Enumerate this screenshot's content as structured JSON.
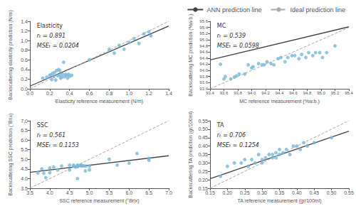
{
  "chart_data": [
    {
      "type": "scatter",
      "xlabel": "Elasticity reference measurement (N/m)",
      "ylabel": "Backscattering elasticity prediction (N/m)",
      "annotations": [
        "Elasticity",
        "rₜ = 0.891",
        "MSEₜ = 0.0204"
      ],
      "xlim": [
        0.0,
        1.4
      ],
      "ylim": [
        0.0,
        1.4
      ],
      "xticks": [
        {
          "value": 0.0,
          "label": "0.0"
        },
        0.2,
        0.4,
        0.6,
        0.8,
        {
          "value": 1.0,
          "label": "1.0"
        },
        1.2,
        1.4
      ],
      "yticks": [
        {
          "value": 0.0,
          "label": "0.0"
        },
        0.2,
        0.4,
        0.6,
        0.8,
        {
          "value": 1.0,
          "label": "1.0"
        },
        1.2,
        1.4
      ],
      "grid": false,
      "legend": "top right",
      "series": [
        {
          "type": "scatter",
          "color": "#7ab8d9",
          "marker": "circle",
          "x": [
            0.13,
            0.17,
            0.2,
            0.21,
            0.22,
            0.23,
            0.24,
            0.25,
            0.26,
            0.27,
            0.28,
            0.29,
            0.3,
            0.3,
            0.31,
            0.32,
            0.33,
            0.34,
            0.35,
            0.36,
            0.37,
            0.38,
            0.39,
            0.4,
            0.42,
            0.6,
            0.8,
            0.85,
            0.9,
            0.95,
            1.0,
            1.05,
            1.1,
            1.15,
            1.2,
            1.22
          ],
          "values": [
            0.22,
            0.24,
            0.28,
            0.29,
            0.19,
            0.32,
            0.26,
            0.34,
            0.18,
            0.38,
            0.27,
            0.4,
            0.28,
            0.38,
            0.22,
            0.24,
            0.3,
            0.55,
            0.25,
            0.3,
            0.28,
            0.22,
            0.3,
            0.26,
            0.28,
            0.6,
            0.82,
            0.74,
            0.9,
            0.82,
            0.96,
            1.04,
            0.94,
            1.14,
            1.18,
            1.1
          ]
        },
        {
          "name": "ANN prediction line",
          "type": "line",
          "color": "#444444",
          "line_style": "solid",
          "x": [
            0.0,
            1.4
          ],
          "values": [
            0.055,
            1.3024
          ]
        },
        {
          "name": "Ideal prediction line",
          "type": "line",
          "color": "#aaaaaa",
          "line_style": "dashed",
          "x": [
            0.0,
            1.4
          ],
          "values": [
            0.0,
            1.4
          ]
        }
      ]
    },
    {
      "type": "scatter",
      "xlabel": "MC reference measurement (%w.b.)",
      "ylabel": "Backscattering MC prediction (%w.b.)",
      "annotations": [
        "MC",
        "rₜ = 0.539",
        "MSEₜ = 0.0598"
      ],
      "xlim": [
        93.4,
        95.4
      ],
      "ylim": [
        93.4,
        95.6
      ],
      "xticks": [
        93.4,
        93.6,
        93.8,
        {
          "value": 94.0,
          "label": "94.0"
        },
        94.2,
        94.4,
        94.6,
        94.8,
        {
          "value": 95.0,
          "label": "95.0"
        },
        95.2,
        95.4
      ],
      "yticks": [
        93.4,
        93.6,
        93.8,
        {
          "value": 94.0,
          "label": "94.0"
        },
        94.2,
        94.4,
        94.6,
        94.8,
        {
          "value": 95.0,
          "label": "95.0"
        },
        95.2,
        95.4,
        95.6
      ],
      "grid": false,
      "legend": "top right",
      "series": [
        {
          "type": "scatter",
          "color": "#7ab8d9",
          "marker": "circle",
          "x": [
            93.55,
            93.6,
            93.62,
            93.7,
            93.75,
            93.78,
            93.82,
            93.9,
            93.95,
            94.0,
            94.02,
            94.1,
            94.15,
            94.18,
            94.22,
            94.28,
            94.32,
            94.38,
            94.42,
            94.48,
            94.52,
            94.58,
            94.62,
            94.68,
            94.72,
            94.78,
            94.82,
            94.88,
            94.92,
            94.98,
            95.02,
            95.08,
            95.2
          ],
          "values": [
            94.2,
            93.72,
            93.8,
            93.72,
            93.78,
            93.82,
            93.88,
            93.88,
            94.18,
            94.08,
            94.12,
            94.22,
            94.18,
            94.18,
            94.28,
            94.22,
            94.18,
            94.38,
            94.42,
            94.28,
            94.42,
            94.48,
            94.48,
            94.38,
            94.52,
            94.42,
            94.58,
            94.48,
            94.58,
            94.58,
            94.42,
            94.58,
            94.8
          ]
        },
        {
          "name": "ANN prediction line",
          "type": "line",
          "color": "#444444",
          "line_style": "solid",
          "x": [
            93.4,
            95.4
          ],
          "values": [
            94.3426,
            95.4206
          ]
        },
        {
          "name": "Ideal prediction line",
          "type": "line",
          "color": "#aaaaaa",
          "line_style": "dashed",
          "x": [
            93.4,
            95.4
          ],
          "values": [
            93.4,
            95.4
          ]
        }
      ]
    },
    {
      "type": "scatter",
      "xlabel": "SSC reference measurement (°Brix)",
      "ylabel": "Backscattering SSC prediction (°Brix)",
      "annotations": [
        "SSC",
        "rₜ = 0.561",
        "MSEₜ = 0.1153"
      ],
      "xlim": [
        3.5,
        7.0
      ],
      "ylim": [
        3.5,
        7.0
      ],
      "xticks": [
        3.5,
        {
          "value": 4.0,
          "label": "4.0"
        },
        4.5,
        {
          "value": 5.0,
          "label": "5.0"
        },
        5.5,
        {
          "value": 6.0,
          "label": "6.0"
        },
        6.5,
        {
          "value": 7.0,
          "label": "7.0"
        }
      ],
      "yticks": [
        3.5,
        {
          "value": 4.0,
          "label": "4.0"
        },
        4.5,
        {
          "value": 5.0,
          "label": "5.0"
        },
        5.5,
        {
          "value": 6.0,
          "label": "6.0"
        },
        6.5,
        {
          "value": 7.0,
          "label": "7.0"
        }
      ],
      "grid": false,
      "legend": "top right",
      "series": [
        {
          "type": "scatter",
          "color": "#7ab8d9",
          "marker": "circle",
          "x": [
            3.7,
            3.8,
            3.85,
            3.9,
            4.0,
            4.0,
            4.1,
            4.2,
            4.3,
            4.5,
            4.5,
            4.6,
            4.6,
            4.65,
            4.7,
            4.7,
            4.7,
            4.7,
            4.75,
            4.8,
            4.8,
            4.85,
            4.9,
            4.9,
            5.0,
            5.0,
            5.5,
            5.7,
            6.0,
            6.2,
            6.5,
            6.5
          ],
          "values": [
            4.3,
            4.5,
            4.28,
            4.05,
            4.55,
            4.3,
            4.6,
            4.45,
            4.65,
            4.7,
            4.45,
            4.65,
            4.7,
            4.6,
            4.65,
            4.7,
            4.62,
            4.0,
            4.68,
            4.65,
            4.7,
            4.66,
            4.65,
            4.4,
            4.65,
            4.45,
            5.0,
            4.7,
            4.8,
            5.3,
            5.05,
            4.95
          ]
        },
        {
          "name": "ANN prediction line",
          "type": "line",
          "color": "#444444",
          "line_style": "solid",
          "x": [
            3.5,
            7.0
          ],
          "values": [
            4.3275,
            5.185
          ]
        },
        {
          "name": "Ideal prediction line",
          "type": "line",
          "color": "#aaaaaa",
          "line_style": "dashed",
          "x": [
            3.5,
            7.0
          ],
          "values": [
            3.5,
            7.0
          ]
        }
      ]
    },
    {
      "type": "scatter",
      "xlabel": "TA reference measurement (gr/100ml)",
      "ylabel": "Backscattering TA prediction (gr/100ml)",
      "annotations": [
        "TA",
        "rₜ = 0.706",
        "MSEₜ = 0.1254"
      ],
      "xlim": [
        0.15,
        0.55
      ],
      "ylim": [
        0.15,
        0.55
      ],
      "xticks": [
        0.15,
        {
          "value": 0.2,
          "label": "0.20"
        },
        0.25,
        {
          "value": 0.3,
          "label": "0.30"
        },
        0.35,
        {
          "value": 0.4,
          "label": "0.40"
        },
        0.45,
        {
          "value": 0.5,
          "label": "0.50"
        },
        0.55
      ],
      "yticks": [
        0.15,
        {
          "value": 0.2,
          "label": "0.20"
        },
        0.25,
        {
          "value": 0.3,
          "label": "0.30"
        },
        0.35,
        {
          "value": 0.4,
          "label": "0.40"
        },
        0.45,
        {
          "value": 0.5,
          "label": "0.50"
        },
        0.55
      ],
      "grid": false,
      "legend": "top right",
      "series": [
        {
          "type": "scatter",
          "color": "#7ab8d9",
          "marker": "circle",
          "x": [
            0.18,
            0.2,
            0.22,
            0.24,
            0.25,
            0.26,
            0.27,
            0.28,
            0.29,
            0.3,
            0.3,
            0.31,
            0.32,
            0.33,
            0.33,
            0.34,
            0.34,
            0.35,
            0.35,
            0.36,
            0.37,
            0.38,
            0.39,
            0.4,
            0.41,
            0.42,
            0.43,
            0.45,
            0.5
          ],
          "values": [
            0.22,
            0.28,
            0.3,
            0.3,
            0.32,
            0.28,
            0.32,
            0.3,
            0.35,
            0.32,
            0.3,
            0.33,
            0.35,
            0.33,
            0.35,
            0.36,
            0.33,
            0.35,
            0.38,
            0.36,
            0.38,
            0.35,
            0.4,
            0.4,
            0.38,
            0.42,
            0.4,
            0.42,
            0.45
          ]
        },
        {
          "name": "ANN prediction line",
          "type": "line",
          "color": "#444444",
          "line_style": "solid",
          "x": [
            0.15,
            0.55
          ],
          "values": [
            0.2059,
            0.4883
          ]
        },
        {
          "name": "Ideal prediction line",
          "type": "line",
          "color": "#aaaaaa",
          "line_style": "dashed",
          "x": [
            0.15,
            0.55
          ],
          "values": [
            0.15,
            0.55
          ]
        }
      ]
    }
  ]
}
